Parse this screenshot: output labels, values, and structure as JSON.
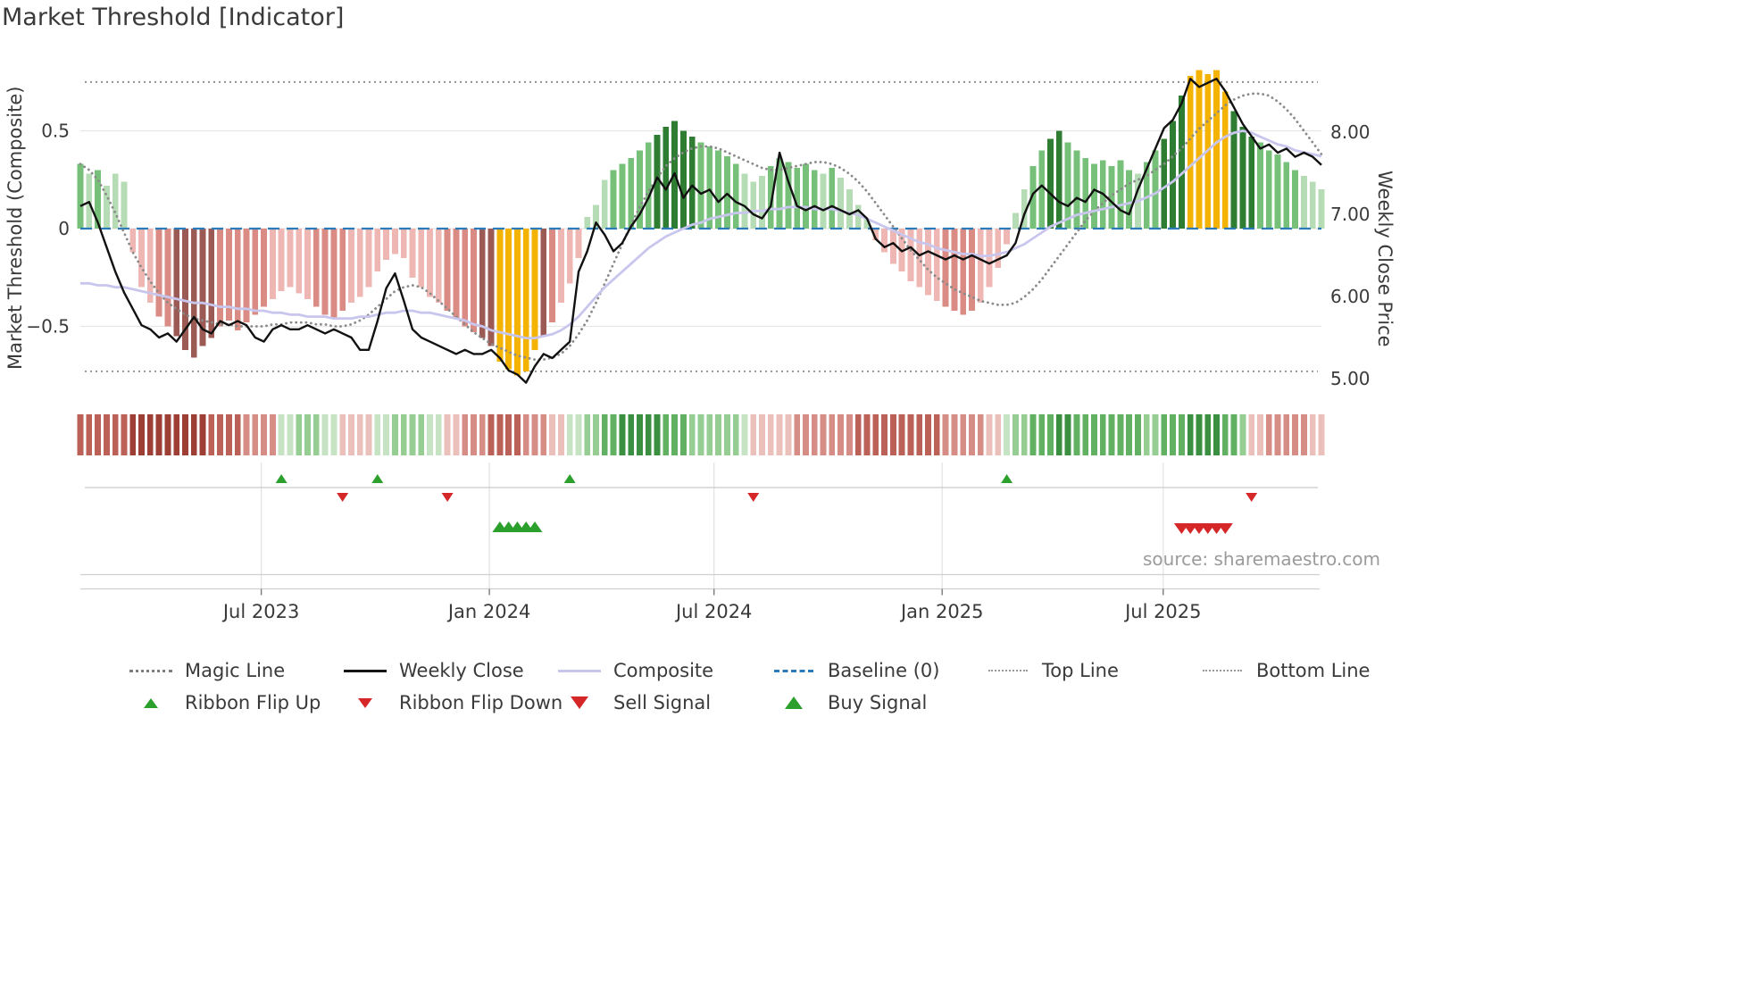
{
  "page": {
    "title": "Market Threshold [Indicator]",
    "source": "source: sharemaestro.com"
  },
  "chart_data": {
    "type": "mixed_bar_line",
    "n_points": 143,
    "x_ticks": [
      {
        "pos": 20.7,
        "label": "Jul 2023"
      },
      {
        "pos": 46.8,
        "label": "Jan 2024"
      },
      {
        "pos": 72.5,
        "label": "Jul 2024"
      },
      {
        "pos": 98.6,
        "label": "Jan 2025"
      },
      {
        "pos": 123.9,
        "label": "Jul 2025"
      }
    ],
    "left_axis": {
      "label": "Market Threshold (Composite)",
      "ticks": [
        {
          "value": 0.5,
          "label": "0.5"
        },
        {
          "value": 0,
          "label": "0"
        },
        {
          "value": -0.5,
          "label": "−0.5"
        }
      ]
    },
    "right_axis": {
      "label": "Weekly Close Price",
      "ticks": [
        {
          "value": 8,
          "label": "8.00"
        },
        {
          "value": 7,
          "label": "7.00"
        },
        {
          "value": 6,
          "label": "6.00"
        },
        {
          "value": 5,
          "label": "5.00"
        }
      ]
    },
    "reference_lines": {
      "baseline": 0,
      "top_line": 0.75,
      "bottom_line": -0.73
    },
    "series": [
      {
        "name": "Composite Histogram",
        "type": "bar",
        "axis": "left",
        "highlight_indices": [
          48,
          49,
          50,
          51,
          52,
          127,
          128,
          129,
          130,
          131
        ],
        "values": [
          0.33,
          0.28,
          0.3,
          0.22,
          0.28,
          0.24,
          -0.12,
          -0.3,
          -0.38,
          -0.45,
          -0.5,
          -0.55,
          -0.62,
          -0.66,
          -0.6,
          -0.56,
          -0.5,
          -0.47,
          -0.52,
          -0.48,
          -0.44,
          -0.4,
          -0.36,
          -0.32,
          -0.3,
          -0.33,
          -0.36,
          -0.4,
          -0.44,
          -0.46,
          -0.42,
          -0.38,
          -0.35,
          -0.3,
          -0.22,
          -0.16,
          -0.13,
          -0.15,
          -0.25,
          -0.3,
          -0.35,
          -0.38,
          -0.42,
          -0.46,
          -0.5,
          -0.53,
          -0.56,
          -0.6,
          -0.68,
          -0.72,
          -0.75,
          -0.73,
          -0.62,
          -0.55,
          -0.48,
          -0.38,
          -0.28,
          -0.15,
          0.06,
          0.12,
          0.25,
          0.3,
          0.33,
          0.36,
          0.4,
          0.44,
          0.48,
          0.52,
          0.55,
          0.5,
          0.47,
          0.44,
          0.42,
          0.4,
          0.37,
          0.33,
          0.28,
          0.24,
          0.27,
          0.32,
          0.36,
          0.34,
          0.31,
          0.33,
          0.3,
          0.28,
          0.31,
          0.26,
          0.2,
          0.12,
          0.05,
          -0.06,
          -0.12,
          -0.18,
          -0.22,
          -0.27,
          -0.3,
          -0.34,
          -0.37,
          -0.4,
          -0.42,
          -0.44,
          -0.42,
          -0.38,
          -0.3,
          -0.2,
          -0.08,
          0.08,
          0.2,
          0.32,
          0.4,
          0.46,
          0.5,
          0.44,
          0.4,
          0.36,
          0.33,
          0.35,
          0.32,
          0.35,
          0.3,
          0.28,
          0.34,
          0.4,
          0.46,
          0.55,
          0.68,
          0.78,
          0.81,
          0.79,
          0.81,
          0.7,
          0.6,
          0.52,
          0.47,
          0.44,
          0.4,
          0.38,
          0.34,
          0.3,
          0.27,
          0.24,
          0.2
        ]
      },
      {
        "name": "Weekly Close",
        "type": "line",
        "axis": "right",
        "values": [
          7.1,
          7.15,
          6.9,
          6.6,
          6.3,
          6.05,
          5.85,
          5.65,
          5.6,
          5.5,
          5.55,
          5.45,
          5.6,
          5.75,
          5.6,
          5.55,
          5.7,
          5.65,
          5.7,
          5.65,
          5.5,
          5.45,
          5.6,
          5.65,
          5.6,
          5.6,
          5.65,
          5.6,
          5.55,
          5.6,
          5.55,
          5.5,
          5.35,
          5.35,
          5.7,
          6.1,
          6.28,
          5.95,
          5.6,
          5.5,
          5.45,
          5.4,
          5.35,
          5.3,
          5.35,
          5.3,
          5.3,
          5.35,
          5.25,
          5.1,
          5.05,
          4.95,
          5.15,
          5.3,
          5.25,
          5.35,
          5.45,
          6.3,
          6.55,
          6.9,
          6.75,
          6.55,
          6.65,
          6.85,
          7.0,
          7.2,
          7.45,
          7.3,
          7.5,
          7.2,
          7.35,
          7.25,
          7.3,
          7.15,
          7.25,
          7.15,
          7.1,
          7.0,
          6.95,
          7.1,
          7.75,
          7.4,
          7.1,
          7.05,
          7.1,
          7.05,
          7.1,
          7.05,
          7.0,
          7.05,
          6.95,
          6.7,
          6.6,
          6.65,
          6.55,
          6.6,
          6.5,
          6.55,
          6.5,
          6.45,
          6.5,
          6.45,
          6.5,
          6.45,
          6.4,
          6.45,
          6.5,
          6.65,
          7.0,
          7.25,
          7.35,
          7.25,
          7.15,
          7.1,
          7.2,
          7.15,
          7.3,
          7.25,
          7.15,
          7.05,
          7.0,
          7.3,
          7.55,
          7.8,
          8.05,
          8.15,
          8.35,
          8.65,
          8.55,
          8.6,
          8.65,
          8.5,
          8.3,
          8.1,
          7.95,
          7.8,
          7.85,
          7.75,
          7.8,
          7.7,
          7.75,
          7.7,
          7.6
        ]
      },
      {
        "name": "Composite",
        "type": "line",
        "axis": "left",
        "values": [
          -0.28,
          -0.28,
          -0.29,
          -0.29,
          -0.3,
          -0.3,
          -0.31,
          -0.32,
          -0.33,
          -0.34,
          -0.35,
          -0.36,
          -0.37,
          -0.38,
          -0.38,
          -0.39,
          -0.4,
          -0.4,
          -0.41,
          -0.41,
          -0.42,
          -0.42,
          -0.43,
          -0.43,
          -0.44,
          -0.44,
          -0.45,
          -0.45,
          -0.45,
          -0.46,
          -0.46,
          -0.46,
          -0.45,
          -0.45,
          -0.44,
          -0.43,
          -0.43,
          -0.42,
          -0.42,
          -0.43,
          -0.43,
          -0.44,
          -0.45,
          -0.46,
          -0.47,
          -0.49,
          -0.5,
          -0.52,
          -0.53,
          -0.54,
          -0.55,
          -0.56,
          -0.56,
          -0.55,
          -0.54,
          -0.52,
          -0.49,
          -0.45,
          -0.4,
          -0.35,
          -0.3,
          -0.26,
          -0.22,
          -0.18,
          -0.14,
          -0.1,
          -0.07,
          -0.04,
          -0.02,
          0.0,
          0.02,
          0.03,
          0.05,
          0.06,
          0.07,
          0.08,
          0.08,
          0.09,
          0.09,
          0.1,
          0.1,
          0.11,
          0.11,
          0.11,
          0.1,
          0.1,
          0.1,
          0.09,
          0.08,
          0.07,
          0.05,
          0.03,
          0.01,
          -0.01,
          -0.03,
          -0.05,
          -0.07,
          -0.08,
          -0.1,
          -0.11,
          -0.12,
          -0.13,
          -0.13,
          -0.14,
          -0.14,
          -0.13,
          -0.12,
          -0.1,
          -0.08,
          -0.05,
          -0.02,
          0.01,
          0.03,
          0.05,
          0.07,
          0.08,
          0.09,
          0.1,
          0.11,
          0.12,
          0.13,
          0.14,
          0.16,
          0.18,
          0.21,
          0.24,
          0.28,
          0.32,
          0.36,
          0.4,
          0.44,
          0.47,
          0.49,
          0.5,
          0.49,
          0.47,
          0.45,
          0.43,
          0.42,
          0.4,
          0.39,
          0.38,
          0.37
        ]
      },
      {
        "name": "Magic Line",
        "type": "line",
        "axis": "left",
        "style": "dotted",
        "values": [
          0.33,
          0.3,
          0.25,
          0.17,
          0.08,
          -0.02,
          -0.12,
          -0.2,
          -0.27,
          -0.33,
          -0.38,
          -0.41,
          -0.44,
          -0.46,
          -0.47,
          -0.48,
          -0.49,
          -0.49,
          -0.5,
          -0.5,
          -0.5,
          -0.5,
          -0.49,
          -0.49,
          -0.48,
          -0.48,
          -0.48,
          -0.49,
          -0.49,
          -0.5,
          -0.5,
          -0.49,
          -0.47,
          -0.44,
          -0.4,
          -0.36,
          -0.32,
          -0.3,
          -0.29,
          -0.3,
          -0.33,
          -0.37,
          -0.41,
          -0.45,
          -0.49,
          -0.53,
          -0.56,
          -0.59,
          -0.61,
          -0.63,
          -0.65,
          -0.66,
          -0.67,
          -0.67,
          -0.66,
          -0.64,
          -0.6,
          -0.54,
          -0.47,
          -0.38,
          -0.28,
          -0.18,
          -0.08,
          0.02,
          0.11,
          0.19,
          0.26,
          0.32,
          0.36,
          0.39,
          0.41,
          0.42,
          0.42,
          0.41,
          0.39,
          0.37,
          0.35,
          0.33,
          0.31,
          0.3,
          0.3,
          0.31,
          0.32,
          0.33,
          0.34,
          0.34,
          0.33,
          0.31,
          0.28,
          0.24,
          0.19,
          0.13,
          0.07,
          0.01,
          -0.05,
          -0.11,
          -0.16,
          -0.21,
          -0.25,
          -0.28,
          -0.31,
          -0.33,
          -0.35,
          -0.37,
          -0.38,
          -0.39,
          -0.39,
          -0.38,
          -0.35,
          -0.31,
          -0.26,
          -0.2,
          -0.14,
          -0.08,
          -0.02,
          0.04,
          0.09,
          0.13,
          0.17,
          0.2,
          0.23,
          0.25,
          0.27,
          0.3,
          0.33,
          0.37,
          0.41,
          0.46,
          0.51,
          0.55,
          0.59,
          0.63,
          0.66,
          0.68,
          0.69,
          0.69,
          0.68,
          0.65,
          0.61,
          0.56,
          0.5,
          0.44,
          0.38
        ]
      }
    ],
    "ribbon": [
      -3,
      -3,
      -3,
      -3,
      -3,
      -3,
      -4,
      -4,
      -4,
      -4,
      -4,
      -4,
      -4,
      -4,
      -4,
      -3,
      -3,
      -3,
      -3,
      -2,
      -2,
      -2,
      -2,
      1,
      1,
      2,
      2,
      2,
      1,
      1,
      -1,
      -1,
      -1,
      -1,
      1,
      1,
      2,
      2,
      2,
      2,
      1,
      1,
      -1,
      -1,
      -2,
      -2,
      -2,
      -3,
      -3,
      -3,
      -3,
      -2,
      -2,
      -2,
      -1,
      -1,
      1,
      1,
      2,
      2,
      3,
      3,
      4,
      4,
      4,
      4,
      4,
      3,
      3,
      3,
      2,
      2,
      2,
      2,
      2,
      2,
      1,
      -1,
      -1,
      -1,
      -1,
      -1,
      -2,
      -2,
      -2,
      -2,
      -2,
      -2,
      -2,
      -3,
      -3,
      -3,
      -3,
      -3,
      -3,
      -3,
      -3,
      -3,
      -3,
      -2,
      -2,
      -2,
      -2,
      -2,
      -1,
      -1,
      1,
      2,
      2,
      3,
      3,
      3,
      4,
      4,
      3,
      3,
      3,
      3,
      3,
      3,
      3,
      3,
      2,
      2,
      3,
      3,
      3,
      4,
      4,
      4,
      4,
      3,
      3,
      2,
      -1,
      -1,
      -2,
      -2,
      -2,
      -2,
      -2,
      -1,
      -1
    ],
    "signals": {
      "ribbon_flip_up": [
        23,
        34,
        56,
        106
      ],
      "ribbon_flip_down": [
        30,
        42,
        77,
        134
      ],
      "buy": [
        48,
        49,
        50,
        51,
        52
      ],
      "sell": [
        126,
        127,
        128,
        129,
        130,
        131
      ]
    }
  },
  "legend": {
    "row1": [
      {
        "label": "Magic Line"
      },
      {
        "label": "Weekly Close"
      },
      {
        "label": "Composite"
      },
      {
        "label": "Baseline (0)"
      },
      {
        "label": "Top Line"
      },
      {
        "label": "Bottom Line"
      }
    ],
    "row2": [
      {
        "label": "Ribbon Flip Up"
      },
      {
        "label": "Ribbon Flip Down"
      },
      {
        "label": "Sell Signal"
      },
      {
        "label": "Buy Signal"
      }
    ]
  },
  "colors": {
    "bar_pos_strong": "#2e7d32",
    "bar_pos_mid": "#77c079",
    "bar_pos_light": "#b6dcb6",
    "bar_neg_strong": "#9b5a54",
    "bar_neg_mid": "#d98b84",
    "bar_neg_light": "#efb7b3",
    "bar_highlight": "#f5b301",
    "weekly_close": "#111111",
    "composite_line": "#c9c6ee",
    "magic_line": "#8a8a8a",
    "baseline": "#2b7bba",
    "ref_line": "#8c8c8c",
    "signal_green": "#2ca02c",
    "signal_red": "#d62728",
    "ribbon_palette": {
      "-4": "#9e3f36",
      "-3": "#bc6158",
      "-2": "#d58d85",
      "-1": "#ecc0ba",
      "1": "#c6e3c3",
      "2": "#95cd92",
      "3": "#62b163",
      "4": "#3b8f41"
    }
  }
}
